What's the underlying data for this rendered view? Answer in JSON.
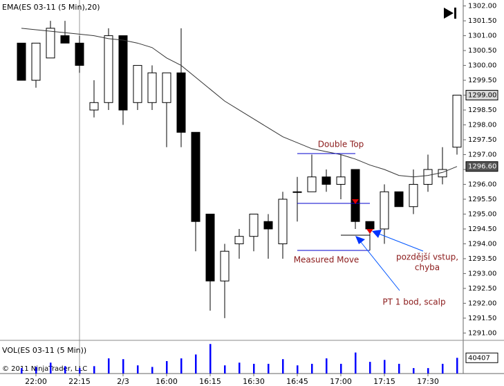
{
  "chart_data": {
    "type": "candlestick",
    "title": "EMA(ES 03-11 (5 Min),20)",
    "volume_title": "VOL(ES 03-11 (5 Min))",
    "copyright": "© 2011 NinjaTrader, LLC",
    "categories": [
      null,
      "22:00",
      null,
      null,
      "22:15",
      null,
      null,
      "2/3",
      null,
      null,
      "16:00",
      null,
      null,
      "16:15",
      null,
      null,
      "16:30",
      null,
      null,
      "16:45",
      null,
      null,
      "17:00",
      null,
      null,
      "17:15",
      null,
      null,
      "17:30",
      null,
      null
    ],
    "open": [
      1300.75,
      1299.5,
      1300.25,
      1301.0,
      1300.75,
      1298.5,
      1298.75,
      1301.0,
      1298.75,
      1298.75,
      1298.75,
      1299.75,
      1297.75,
      1295.0,
      1292.75,
      1294.0,
      1294.25,
      1294.75,
      1294.0,
      1295.75,
      1295.75,
      1296.25,
      1296.0,
      1296.5,
      1294.75,
      1294.5,
      1295.75,
      1295.25,
      1296.0,
      1296.25,
      1297.25
    ],
    "high": [
      1300.75,
      1300.75,
      1301.5,
      1301.5,
      1301.0,
      1299.5,
      1301.25,
      1301.0,
      1300.0,
      1300.0,
      1299.75,
      1301.25,
      1297.75,
      1295.0,
      1294.0,
      1294.5,
      1295.0,
      1295.0,
      1295.75,
      1296.25,
      1297.0,
      1296.5,
      1297.0,
      1296.5,
      1294.75,
      1296.0,
      1295.75,
      1296.5,
      1297.0,
      1297.25,
      1299.0
    ],
    "low": [
      1299.5,
      1299.25,
      1300.25,
      1300.75,
      1299.75,
      1298.25,
      1298.5,
      1298.0,
      1298.5,
      1298.5,
      1297.25,
      1297.25,
      1293.75,
      1291.75,
      1291.5,
      1293.5,
      1293.75,
      1293.5,
      1293.5,
      1294.75,
      1295.75,
      1295.75,
      1295.5,
      1294.5,
      1294.25,
      1294.0,
      1295.25,
      1295.0,
      1295.75,
      1296.0,
      1297.0
    ],
    "close": [
      1299.5,
      1300.75,
      1301.25,
      1300.75,
      1300.0,
      1298.75,
      1301.0,
      1298.5,
      1300.0,
      1299.75,
      1299.75,
      1297.75,
      1294.75,
      1292.75,
      1293.75,
      1294.25,
      1295.0,
      1294.5,
      1295.5,
      1295.75,
      1296.25,
      1296.0,
      1296.25,
      1294.75,
      1294.5,
      1295.75,
      1295.25,
      1296.0,
      1296.5,
      1296.5,
      1299.0
    ],
    "ema": [
      1301.25,
      1301.2,
      1301.15,
      1301.1,
      1301.05,
      1301.0,
      1300.9,
      1300.85,
      1300.75,
      1300.6,
      1300.25,
      1300.0,
      1299.6,
      1299.2,
      1298.8,
      1298.5,
      1298.2,
      1297.9,
      1297.6,
      1297.4,
      1297.2,
      1297.1,
      1297.0,
      1296.85,
      1296.65,
      1296.5,
      1296.3,
      1296.25,
      1296.3,
      1296.4,
      1296.6
    ],
    "volume": [
      14000,
      17000,
      28000,
      19000,
      14000,
      19000,
      39000,
      37000,
      21000,
      17000,
      32000,
      39000,
      49000,
      76000,
      21000,
      28000,
      25000,
      25000,
      37000,
      21000,
      25000,
      39000,
      25000,
      54000,
      30000,
      35000,
      25000,
      14000,
      14000,
      25000,
      40407
    ],
    "up_color": "#ffffff",
    "down_color": "#000000",
    "ema_color": "#333333",
    "volume_color": "#0000ff",
    "ylim": [
      1290.8,
      1302.2
    ],
    "vlim": [
      0,
      80000
    ],
    "yticks": [
      {
        "value": 1291,
        "label": "1291.00"
      },
      {
        "value": 1291.5,
        "label": "1291.50"
      },
      {
        "value": 1292,
        "label": "1292.00"
      },
      {
        "value": 1292.5,
        "label": "1292.50"
      },
      {
        "value": 1293,
        "label": "1293.00"
      },
      {
        "value": 1293.5,
        "label": "1293.50"
      },
      {
        "value": 1294,
        "label": "1294.00"
      },
      {
        "value": 1294.5,
        "label": "1294.50"
      },
      {
        "value": 1295,
        "label": "1295.00"
      },
      {
        "value": 1295.5,
        "label": "1295.50"
      },
      {
        "value": 1296,
        "label": "1296.00"
      },
      {
        "value": 1296.5,
        "label": "1296.50"
      },
      {
        "value": 1297,
        "label": "1297.00"
      },
      {
        "value": 1297.5,
        "label": "1297.50"
      },
      {
        "value": 1298,
        "label": "1298.00"
      },
      {
        "value": 1298.5,
        "label": "1298.50"
      },
      {
        "value": 1299,
        "label": "1299.00"
      },
      {
        "value": 1299.5,
        "label": "1299.50"
      },
      {
        "value": 1300,
        "label": "1300.00"
      },
      {
        "value": 1300.5,
        "label": "1300.50"
      },
      {
        "value": 1301,
        "label": "1301.00"
      },
      {
        "value": 1301.5,
        "label": "1301.50"
      },
      {
        "value": 1302,
        "label": "1302.00"
      }
    ],
    "last_price_label": {
      "value": 1299,
      "label": "1299.00"
    },
    "ema_label": {
      "value": 1296.6,
      "label": "1296.60"
    },
    "volume_label": {
      "value": 40407,
      "label": "40407"
    },
    "annotations": [
      "Double Top",
      "Measured Move",
      "pozdější vstup,",
      "chyba",
      "PT 1 bod, scalp"
    ]
  }
}
